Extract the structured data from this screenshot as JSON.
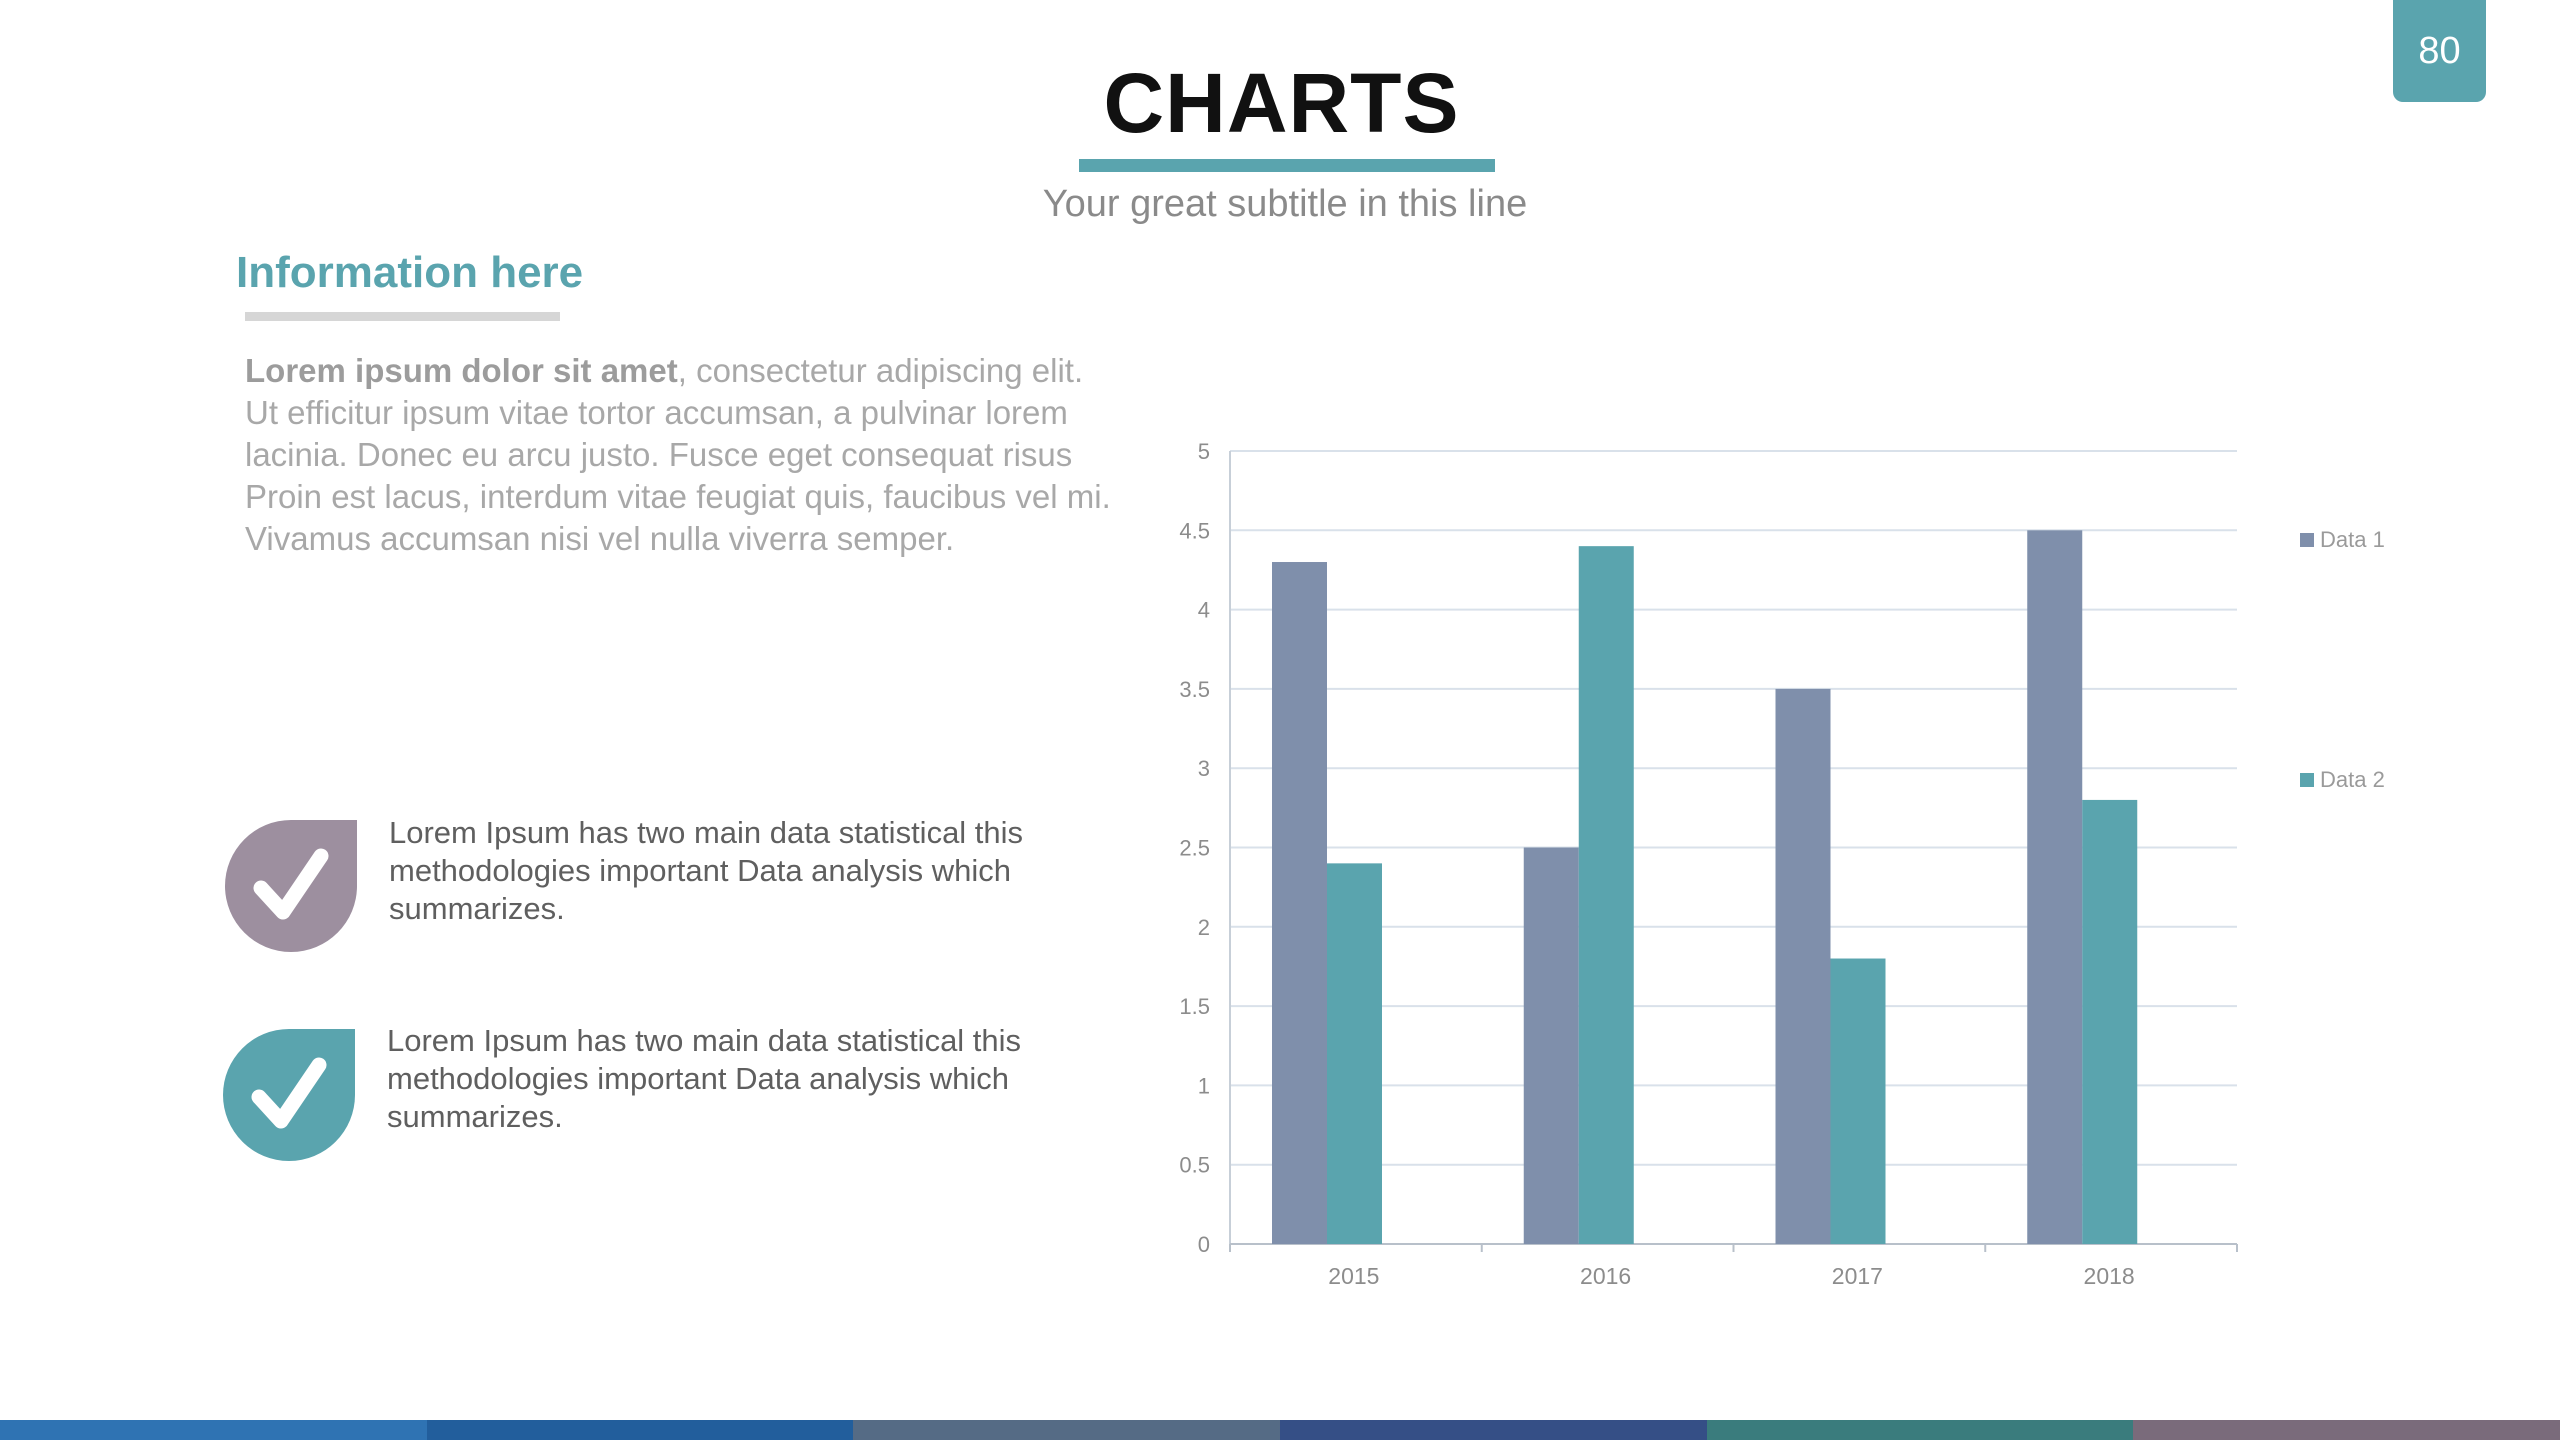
{
  "page_number": "80",
  "title": "CHARTS",
  "subtitle": "Your great subtitle in this line",
  "info": {
    "heading": "Information here",
    "bold_lead": "Lorem ipsum dolor sit amet",
    "body": ", consectetur adipiscing elit. Ut efficitur ipsum vitae tortor accumsan, a pulvinar lorem lacinia. Donec eu arcu justo. Fusce eget consequat risus Proin est lacus, interdum vitae feugiat quis, faucibus vel mi.  Vivamus accumsan nisi vel nulla viverra semper."
  },
  "checklist": [
    {
      "text": "Lorem Ipsum has two main data statistical this methodologies important Data analysis which summarizes.",
      "color": "#9d8f9f",
      "icon": "check-icon"
    },
    {
      "text": "Lorem Ipsum has two main data statistical this methodologies important Data analysis which summarizes.",
      "color": "#5aa4ae",
      "icon": "check-icon"
    }
  ],
  "colors": {
    "accent": "#5aa4ae",
    "data1": "#7f8fab",
    "data2": "#5aa4ae",
    "strip": [
      "#2f73b3",
      "#225e9c",
      "#556b85",
      "#354f86",
      "#3a7c7d",
      "#7a6b7b"
    ]
  },
  "chart_data": {
    "type": "bar",
    "categories": [
      "2015",
      "2016",
      "2017",
      "2018"
    ],
    "series": [
      {
        "name": "Data 1",
        "values": [
          4.3,
          2.5,
          3.5,
          4.5
        ]
      },
      {
        "name": "Data 2",
        "values": [
          2.4,
          4.4,
          1.8,
          2.8
        ]
      }
    ],
    "ylim": [
      0,
      5
    ],
    "yticks": [
      "0",
      "0.5",
      "1",
      "1.5",
      "2",
      "2.5",
      "3",
      "3.5",
      "4",
      "4.5",
      "5"
    ],
    "grid": true,
    "legend_position": "right"
  }
}
